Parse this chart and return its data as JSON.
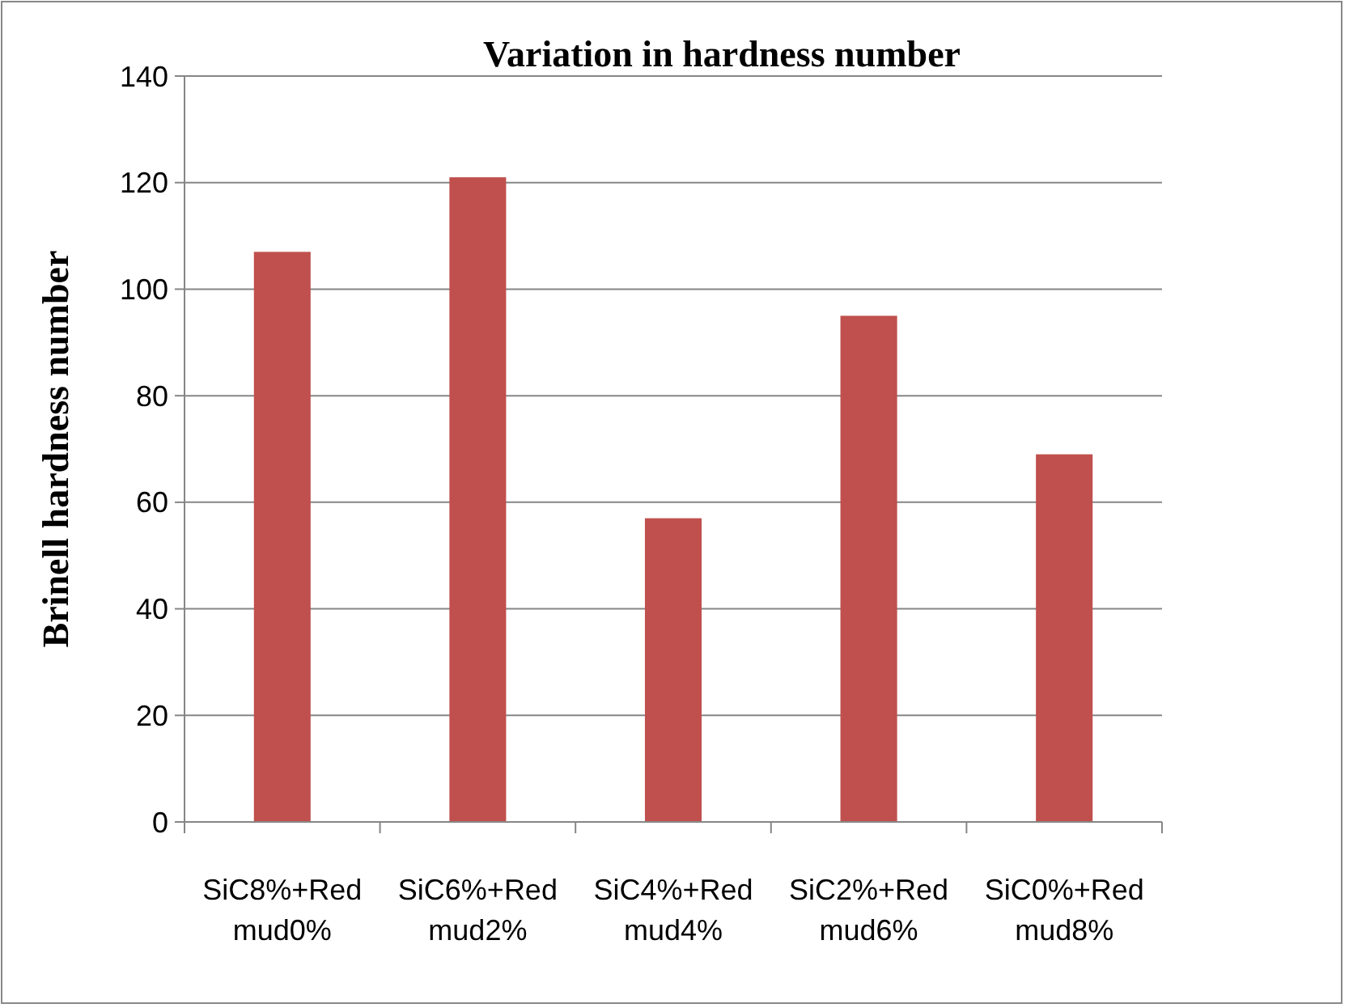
{
  "chart_data": {
    "type": "bar",
    "title": "Variation in hardness number",
    "ylabel": "Brinell hardness number",
    "categories": [
      "SiC8%+Red mud0%",
      "SiC6%+Red mud2%",
      "SiC4%+Red mud4%",
      "SiC2%+Red mud6%",
      "SiC0%+Red mud8%"
    ],
    "values": [
      107,
      121,
      57,
      95,
      69
    ],
    "color": "#c0504d",
    "ylim": [
      0,
      140
    ],
    "yticks": [
      0,
      20,
      40,
      60,
      80,
      100,
      120,
      140
    ],
    "grid": "y"
  }
}
